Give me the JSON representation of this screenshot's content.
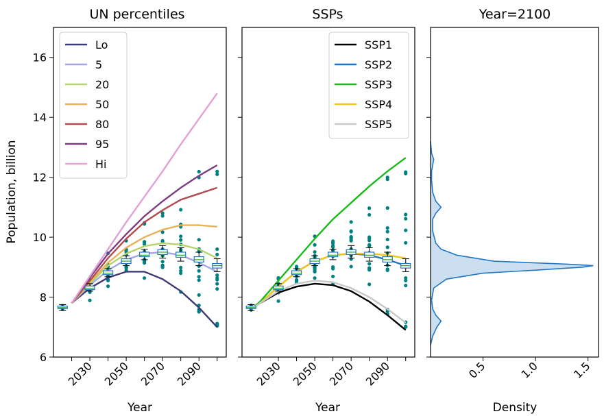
{
  "chart_data": [
    {
      "type": "line",
      "title": "UN percentiles",
      "xlabel": "Year",
      "ylabel": "Population, billion",
      "xlim": [
        2010,
        2105
      ],
      "ylim": [
        6,
        17
      ],
      "x_ticks": [
        "2030",
        "2050",
        "2070",
        "2090"
      ],
      "y_ticks": [
        "6",
        "8",
        "10",
        "12",
        "14",
        "16"
      ],
      "legend": "top-left",
      "grid": false,
      "series": [
        {
          "name": "Lo",
          "color": "#3b3a76",
          "x": [
            2020,
            2030,
            2040,
            2050,
            2060,
            2070,
            2080,
            2090,
            2100
          ],
          "values": [
            7.8,
            8.3,
            8.65,
            8.85,
            8.85,
            8.6,
            8.2,
            7.65,
            7.0
          ]
        },
        {
          "name": "5",
          "color": "#a3a6e0",
          "x": [
            2020,
            2030,
            2040,
            2050,
            2060,
            2070,
            2080,
            2090,
            2100
          ],
          "values": [
            7.8,
            8.4,
            8.9,
            9.25,
            9.45,
            9.5,
            9.4,
            9.15,
            8.85
          ]
        },
        {
          "name": "20",
          "color": "#b5d46a",
          "x": [
            2020,
            2030,
            2040,
            2050,
            2060,
            2070,
            2080,
            2090,
            2100
          ],
          "values": [
            7.8,
            8.45,
            9.05,
            9.45,
            9.7,
            9.8,
            9.75,
            9.6,
            9.3
          ]
        },
        {
          "name": "50",
          "color": "#eab15a",
          "x": [
            2020,
            2030,
            2040,
            2050,
            2060,
            2070,
            2080,
            2090,
            2100
          ],
          "values": [
            7.8,
            8.5,
            9.15,
            9.65,
            10.0,
            10.25,
            10.4,
            10.4,
            10.35
          ]
        },
        {
          "name": "80",
          "color": "#b14b4e",
          "x": [
            2020,
            2030,
            2040,
            2050,
            2060,
            2070,
            2080,
            2090,
            2100
          ],
          "values": [
            7.8,
            8.55,
            9.3,
            9.95,
            10.5,
            10.9,
            11.25,
            11.45,
            11.65
          ]
        },
        {
          "name": "95",
          "color": "#7d3b82",
          "x": [
            2020,
            2030,
            2040,
            2050,
            2060,
            2070,
            2080,
            2090,
            2100
          ],
          "values": [
            7.8,
            8.65,
            9.45,
            10.1,
            10.7,
            11.2,
            11.65,
            12.05,
            12.4
          ]
        },
        {
          "name": "Hi",
          "color": "#e2a0d4",
          "x": [
            2020,
            2030,
            2040,
            2050,
            2060,
            2070,
            2080,
            2090,
            2100
          ],
          "values": [
            7.8,
            8.7,
            9.6,
            10.5,
            11.35,
            12.2,
            13.1,
            13.95,
            14.8
          ]
        }
      ],
      "boxes": {
        "x": [
          2015,
          2030,
          2040,
          2050,
          2060,
          2070,
          2080,
          2090,
          2100
        ],
        "median": [
          7.65,
          8.3,
          8.8,
          9.2,
          9.4,
          9.5,
          9.4,
          9.25,
          9.05
        ],
        "q1": [
          7.62,
          8.25,
          8.75,
          9.12,
          9.35,
          9.42,
          9.33,
          9.17,
          8.97
        ],
        "q3": [
          7.7,
          8.37,
          8.88,
          9.28,
          9.5,
          9.58,
          9.5,
          9.35,
          9.12
        ],
        "whisker_lo": [
          7.55,
          8.2,
          8.68,
          9.05,
          9.25,
          9.3,
          9.2,
          9.05,
          8.85
        ],
        "whisker_hi": [
          7.75,
          8.45,
          8.95,
          9.38,
          9.6,
          9.72,
          9.65,
          9.5,
          9.28
        ]
      },
      "scatter_color": "#008080"
    },
    {
      "type": "line",
      "title": "SSPs",
      "xlabel": "Year",
      "ylabel": "",
      "xlim": [
        2010,
        2105
      ],
      "ylim": [
        6,
        17
      ],
      "x_ticks": [
        "2030",
        "2050",
        "2070",
        "2090"
      ],
      "legend": "top-right",
      "grid": false,
      "series": [
        {
          "name": "SSP1",
          "color": "#000000",
          "x": [
            2015,
            2020,
            2030,
            2040,
            2050,
            2060,
            2070,
            2080,
            2090,
            2100
          ],
          "values": [
            7.6,
            7.8,
            8.15,
            8.35,
            8.45,
            8.4,
            8.2,
            7.85,
            7.4,
            6.9
          ]
        },
        {
          "name": "SSP2",
          "color": "#1f77c4",
          "x": [
            2015,
            2020,
            2030,
            2040,
            2050,
            2060,
            2070,
            2080,
            2090,
            2100
          ],
          "values": [
            7.6,
            7.8,
            8.35,
            8.85,
            9.2,
            9.4,
            9.45,
            9.4,
            9.25,
            9.05
          ]
        },
        {
          "name": "SSP3",
          "color": "#1aba1a",
          "x": [
            2015,
            2020,
            2030,
            2040,
            2050,
            2060,
            2070,
            2080,
            2090,
            2100
          ],
          "values": [
            7.6,
            7.85,
            8.55,
            9.25,
            9.95,
            10.6,
            11.15,
            11.7,
            12.2,
            12.65
          ]
        },
        {
          "name": "SSP4",
          "color": "#f5c518",
          "x": [
            2015,
            2020,
            2030,
            2040,
            2050,
            2060,
            2070,
            2080,
            2090,
            2100
          ],
          "values": [
            7.6,
            7.8,
            8.35,
            8.85,
            9.2,
            9.4,
            9.45,
            9.45,
            9.4,
            9.3
          ]
        },
        {
          "name": "SSP5",
          "color": "#c8c8c8",
          "x": [
            2015,
            2020,
            2030,
            2040,
            2050,
            2060,
            2070,
            2080,
            2090,
            2100
          ],
          "values": [
            7.6,
            7.8,
            8.2,
            8.45,
            8.55,
            8.5,
            8.3,
            8.0,
            7.6,
            7.15
          ]
        }
      ]
    },
    {
      "type": "area",
      "title": "Year=2100",
      "xlabel": "Density",
      "x_ticks": [
        "0.5",
        "1.0",
        "1.5"
      ],
      "xlim": [
        0,
        1.6
      ],
      "ylim": [
        6,
        17
      ],
      "color": "#1f77c4",
      "fill": "#c6dbef",
      "y": [
        6.4,
        6.7,
        7.0,
        7.2,
        7.4,
        7.6,
        7.9,
        8.3,
        8.6,
        8.8,
        8.9,
        9.0,
        9.05,
        9.1,
        9.2,
        9.4,
        9.6,
        9.8,
        10.2,
        10.6,
        10.8,
        11.0,
        11.2,
        11.5,
        11.9,
        12.2,
        12.4,
        12.6,
        12.8,
        13.2
      ],
      "density": [
        0.0,
        0.02,
        0.06,
        0.1,
        0.05,
        0.02,
        0.01,
        0.03,
        0.15,
        0.5,
        1.0,
        1.45,
        1.55,
        1.3,
        0.6,
        0.25,
        0.1,
        0.05,
        0.02,
        0.02,
        0.05,
        0.1,
        0.05,
        0.02,
        0.01,
        0.01,
        0.02,
        0.03,
        0.01,
        0.0
      ]
    }
  ]
}
